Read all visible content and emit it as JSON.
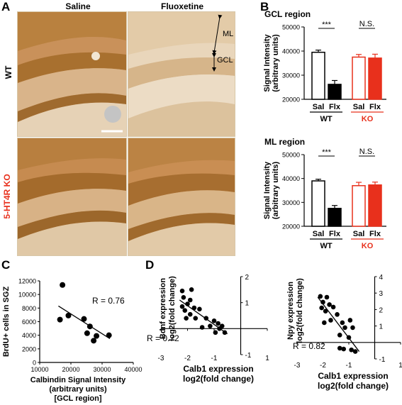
{
  "panels": {
    "A": "A",
    "B": "B",
    "C": "C",
    "D": "D"
  },
  "panel_a": {
    "col_saline": "Saline",
    "col_fluoxetine": "Fluoxetine",
    "row_wt": "WT",
    "row_ko": "5-HT4R KO",
    "label_ml": "ML",
    "label_gcl": "GCL",
    "colors": {
      "stain": "#c08a4a",
      "ko_label": "#e8301c"
    }
  },
  "chart_data": [
    {
      "id": "B-GCL",
      "type": "bar",
      "title": "GCL region",
      "ylabel": "Signal Intensity\n(arbitrary units)",
      "ylim": [
        20000,
        50000
      ],
      "yticks": [
        "20000",
        "30000",
        "40000",
        "50000"
      ],
      "categories": [
        "Sal",
        "Flx",
        "Sal",
        "Flx"
      ],
      "groups": [
        "WT",
        "KO"
      ],
      "values": [
        39500,
        26200,
        37500,
        37100
      ],
      "errors": [
        900,
        1600,
        1100,
        1600
      ],
      "significance": [
        "***",
        "N.S."
      ]
    },
    {
      "id": "B-ML",
      "type": "bar",
      "title": "ML region",
      "ylabel": "Signal Intensity\n(arbitrary units)",
      "ylim": [
        20000,
        50000
      ],
      "yticks": [
        "20000",
        "30000",
        "40000",
        "50000"
      ],
      "categories": [
        "Sal",
        "Flx",
        "Sal",
        "Flx"
      ],
      "groups": [
        "WT",
        "KO"
      ],
      "values": [
        39000,
        27500,
        37000,
        37300
      ],
      "errors": [
        700,
        1200,
        1400,
        1200
      ],
      "significance": [
        "***",
        "N.S."
      ]
    },
    {
      "id": "C",
      "type": "scatter",
      "xlabel": "Calbindin Signal Intensity\n(arbitrary units)\n[GCL region]",
      "ylabel": "BrdU+ cells in SGZ",
      "xlim": [
        10000,
        40000
      ],
      "ylim": [
        0,
        12000
      ],
      "xticks": [
        "10000",
        "20000",
        "30000",
        "40000"
      ],
      "yticks": [
        "0",
        "2000",
        "4000",
        "6000",
        "8000",
        "10000",
        "12000"
      ],
      "annotation": "R = 0.76",
      "points": [
        [
          16500,
          6300
        ],
        [
          17300,
          11400
        ],
        [
          19200,
          6900
        ],
        [
          24200,
          6400
        ],
        [
          25200,
          4300
        ],
        [
          26100,
          5300
        ],
        [
          27300,
          3200
        ],
        [
          28200,
          3900
        ],
        [
          32200,
          4000
        ]
      ],
      "fit": [
        [
          16000,
          8300
        ],
        [
          32500,
          3500
        ]
      ]
    },
    {
      "id": "D-left",
      "type": "scatter",
      "xlabel": "Calb1 expression\nlog2(fold change)",
      "ylabel": "Bdnf expression\nlog2(fold change)",
      "xlim": [
        -3,
        1
      ],
      "ylim": [
        -1,
        2
      ],
      "xticks": [
        "-3",
        "-2",
        "-1",
        "1"
      ],
      "yticks": [
        "-1",
        "1",
        "2"
      ],
      "annotation": "R = 0.72",
      "points": [
        [
          -2.2,
          1.45
        ],
        [
          -1.85,
          1.5
        ],
        [
          -2.15,
          1.2
        ],
        [
          -1.9,
          1.1
        ],
        [
          -2.0,
          0.95
        ],
        [
          -2.2,
          0.85
        ],
        [
          -1.75,
          0.8
        ],
        [
          -2.1,
          0.7
        ],
        [
          -1.55,
          0.75
        ],
        [
          -1.9,
          0.55
        ],
        [
          -2.05,
          0.4
        ],
        [
          -1.3,
          0.4
        ],
        [
          -1.7,
          0.4
        ],
        [
          -1.0,
          0.3
        ],
        [
          -0.85,
          0.2
        ],
        [
          -1.15,
          0.1
        ],
        [
          -0.7,
          0.1
        ],
        [
          -1.45,
          0.05
        ],
        [
          -0.95,
          -0.15
        ],
        [
          -0.6,
          -0.15
        ],
        [
          -0.8,
          0.0
        ]
      ],
      "fit": [
        [
          -2.3,
          1.1
        ],
        [
          -0.5,
          -0.2
        ]
      ]
    },
    {
      "id": "D-right",
      "type": "scatter",
      "xlabel": "Calb1 expression\nlog2(fold change)",
      "ylabel": "Npy expression\nlog2(fold change)",
      "xlim": [
        -3,
        1
      ],
      "ylim": [
        -1,
        4
      ],
      "xticks": [
        "-3",
        "-2",
        "-1",
        "1"
      ],
      "yticks": [
        "-1",
        "1",
        "2",
        "3",
        "4"
      ],
      "annotation": "R = 0.82",
      "points": [
        [
          -2.1,
          2.8
        ],
        [
          -1.85,
          2.75
        ],
        [
          -2.0,
          2.45
        ],
        [
          -1.75,
          2.3
        ],
        [
          -2.05,
          2.1
        ],
        [
          -1.6,
          2.15
        ],
        [
          -1.9,
          1.9
        ],
        [
          -1.45,
          1.7
        ],
        [
          -1.7,
          1.35
        ],
        [
          -1.95,
          1.2
        ],
        [
          -1.25,
          1.2
        ],
        [
          -0.95,
          1.35
        ],
        [
          -1.15,
          0.9
        ],
        [
          -0.85,
          0.9
        ],
        [
          -1.35,
          0.45
        ],
        [
          -1.0,
          0.3
        ],
        [
          -1.35,
          -0.35
        ],
        [
          -1.2,
          -0.4
        ],
        [
          -0.9,
          -0.45
        ],
        [
          -0.75,
          -0.55
        ]
      ],
      "fit": [
        [
          -2.2,
          2.75
        ],
        [
          -0.6,
          -0.55
        ]
      ]
    }
  ]
}
